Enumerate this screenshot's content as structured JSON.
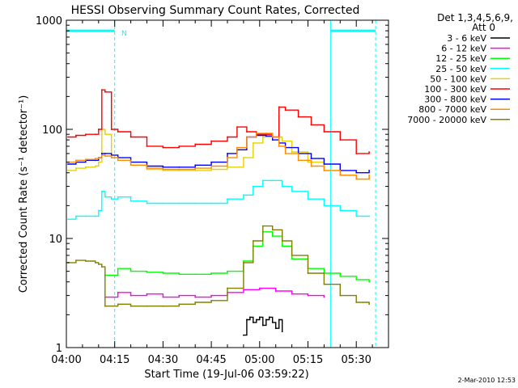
{
  "chart_data": {
    "type": "line",
    "title": "HESSI Observing Summary Count Rates, Corrected",
    "xlabel": "Start Time (19-Jul-06 03:59:22)",
    "ylabel": "Corrected Count Rate (s⁻¹ detector⁻¹)",
    "yscale": "log",
    "ylim": [
      1,
      1000
    ],
    "xlim_minutes": [
      0,
      100
    ],
    "x_ticks": [
      "04:00",
      "04:15",
      "04:30",
      "04:45",
      "05:00",
      "05:15",
      "05:30"
    ],
    "y_ticks": [
      "1",
      "10",
      "100",
      "1000"
    ],
    "x_tick_minutes": [
      0,
      15,
      30,
      45,
      60,
      75,
      90
    ],
    "y_tick_values": [
      1,
      10,
      100,
      1000
    ],
    "legend_header": [
      "Det 1,3,4,5,6,9,",
      "Att 0"
    ],
    "legend_placement": "right, outside plot",
    "timestamp": "2-Mar-2010 12:53",
    "annotations": [
      {
        "text": "N",
        "x": 17,
        "y": 800
      }
    ],
    "night_intervals": [
      [
        0,
        15
      ],
      [
        82,
        96
      ]
    ],
    "data_gaps": [
      [
        0,
        0.5
      ],
      [
        95.5,
        100
      ]
    ],
    "series": [
      {
        "name": "3 - 6 keV",
        "color": "#000000",
        "x": [
          55,
          56,
          57,
          58,
          59,
          60,
          61,
          62,
          63,
          64,
          65,
          66,
          67
        ],
        "y": [
          1.3,
          1.8,
          1.9,
          1.7,
          1.8,
          1.9,
          1.6,
          1.8,
          1.9,
          1.7,
          1.5,
          1.8,
          1.4
        ]
      },
      {
        "name": "6 - 12 keV",
        "color": "#ff00ff",
        "x": [
          12,
          16,
          20,
          25,
          30,
          35,
          40,
          45,
          50,
          55,
          60,
          65,
          70,
          75,
          80
        ],
        "y": [
          2.9,
          3.2,
          3.0,
          3.1,
          2.9,
          3.0,
          2.9,
          3.0,
          3.2,
          3.4,
          3.5,
          3.3,
          3.1,
          3.0,
          2.9
        ]
      },
      {
        "name": "12 - 25 keV",
        "color": "#00ff00",
        "x": [
          12,
          16,
          20,
          25,
          30,
          35,
          40,
          45,
          50,
          55,
          58,
          61,
          64,
          67,
          70,
          75,
          80,
          85,
          90,
          94
        ],
        "y": [
          4.6,
          5.3,
          5.0,
          4.9,
          4.8,
          4.7,
          4.7,
          4.8,
          5.0,
          6.2,
          8.5,
          11.5,
          10.5,
          8.5,
          6.5,
          5.3,
          4.8,
          4.5,
          4.2,
          4.0
        ]
      },
      {
        "name": "25 - 50 keV",
        "color": "#00ffff",
        "x": [
          0.5,
          3,
          6,
          9,
          10,
          11,
          12,
          14,
          16,
          20,
          25,
          30,
          35,
          40,
          45,
          50,
          55,
          58,
          61,
          64,
          67,
          70,
          75,
          80,
          85,
          90,
          94
        ],
        "y": [
          15,
          16,
          16,
          16,
          18,
          27,
          24,
          23,
          24,
          22,
          21,
          21,
          21,
          21,
          21,
          23,
          25,
          30,
          34,
          34,
          30,
          27,
          23,
          20,
          18,
          16,
          16
        ]
      },
      {
        "name": "50 - 100 keV",
        "color": "#e6d200",
        "x": [
          0.5,
          3,
          6,
          9,
          10,
          11,
          12,
          14,
          16,
          20,
          25,
          30,
          35,
          40,
          45,
          50,
          55,
          58,
          61,
          64,
          67,
          70,
          75,
          80,
          85,
          90,
          94
        ],
        "y": [
          42,
          44,
          45,
          46,
          50,
          100,
          90,
          55,
          52,
          47,
          43,
          42,
          42,
          42,
          43,
          45,
          55,
          75,
          85,
          85,
          78,
          62,
          50,
          42,
          38,
          35,
          36
        ]
      },
      {
        "name": "100 - 300 keV",
        "color": "#ff0000",
        "x": [
          0.5,
          3,
          6,
          9,
          10,
          11,
          12,
          14,
          16,
          20,
          25,
          30,
          35,
          40,
          45,
          50,
          53,
          56,
          59,
          62,
          64,
          66,
          68,
          72,
          76,
          80,
          85,
          90,
          94
        ],
        "y": [
          85,
          88,
          90,
          90,
          100,
          230,
          220,
          100,
          95,
          85,
          70,
          68,
          70,
          73,
          78,
          85,
          105,
          95,
          90,
          90,
          85,
          160,
          150,
          130,
          110,
          95,
          80,
          60,
          62
        ]
      },
      {
        "name": "300 - 800 keV",
        "color": "#0000ff",
        "x": [
          0.5,
          3,
          6,
          9,
          10,
          11,
          12,
          14,
          16,
          20,
          25,
          30,
          35,
          40,
          45,
          50,
          53,
          56,
          59,
          62,
          64,
          66,
          68,
          72,
          76,
          80,
          85,
          90,
          94
        ],
        "y": [
          48,
          50,
          52,
          52,
          55,
          60,
          60,
          58,
          55,
          50,
          46,
          45,
          45,
          47,
          50,
          60,
          65,
          85,
          88,
          87,
          80,
          75,
          68,
          60,
          54,
          48,
          42,
          40,
          42
        ]
      },
      {
        "name": "800 - 7000 keV",
        "color": "#ff8c00",
        "x": [
          0.5,
          3,
          6,
          9,
          10,
          11,
          12,
          14,
          16,
          20,
          25,
          30,
          35,
          40,
          45,
          50,
          53,
          56,
          59,
          62,
          64,
          66,
          68,
          72,
          76,
          80,
          85,
          90,
          94
        ],
        "y": [
          50,
          52,
          53,
          54,
          55,
          58,
          57,
          55,
          52,
          47,
          44,
          43,
          43,
          44,
          46,
          55,
          68,
          85,
          92,
          92,
          85,
          70,
          60,
          52,
          46,
          42,
          38,
          35,
          38
        ]
      },
      {
        "name": "7000 - 20000 keV",
        "color": "#808000",
        "x": [
          0.5,
          3,
          6,
          9,
          10,
          11,
          12,
          16,
          20,
          25,
          30,
          35,
          40,
          45,
          50,
          55,
          58,
          61,
          64,
          67,
          70,
          75,
          80,
          85,
          90,
          94
        ],
        "y": [
          6.0,
          6.3,
          6.2,
          6.0,
          5.8,
          5.5,
          2.4,
          2.5,
          2.4,
          2.4,
          2.4,
          2.5,
          2.6,
          2.7,
          3.5,
          6.0,
          9.5,
          13.0,
          12.0,
          9.5,
          7.0,
          4.8,
          3.8,
          3.0,
          2.6,
          2.5
        ]
      }
    ]
  }
}
